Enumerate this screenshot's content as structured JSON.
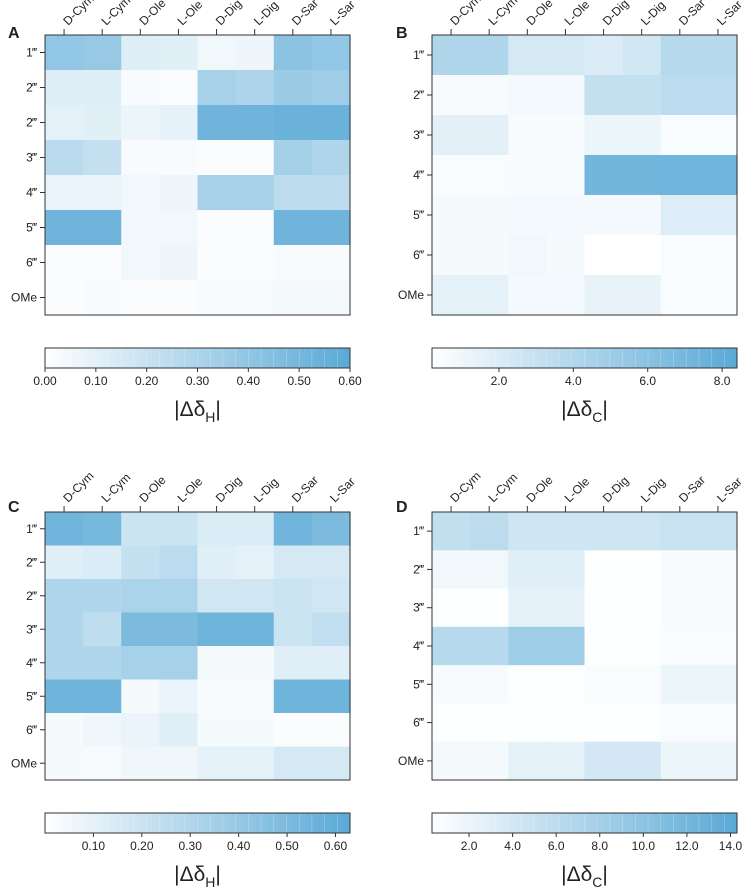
{
  "colors": {
    "low": "#ffffff",
    "high": "#5aa9d6",
    "frame": "#333333"
  },
  "chart_data": [
    {
      "type": "heatmap",
      "panel": "A",
      "columns": [
        "D-Cym",
        "L-Cym",
        "D-Ole",
        "L-Ole",
        "D-Dig",
        "L-Dig",
        "D-Sar",
        "L-Sar"
      ],
      "rows": [
        "1‴",
        "2‴",
        "2‴",
        "3‴",
        "4‴",
        "5‴",
        "6‴",
        "OMe"
      ],
      "values": [
        [
          0.4,
          0.38,
          0.12,
          0.11,
          0.05,
          0.06,
          0.42,
          0.4
        ],
        [
          0.12,
          0.12,
          0.03,
          0.02,
          0.32,
          0.3,
          0.36,
          0.35
        ],
        [
          0.1,
          0.11,
          0.07,
          0.09,
          0.52,
          0.52,
          0.54,
          0.54
        ],
        [
          0.25,
          0.22,
          0.03,
          0.03,
          0.02,
          0.02,
          0.33,
          0.29
        ],
        [
          0.08,
          0.08,
          0.05,
          0.06,
          0.32,
          0.32,
          0.24,
          0.24
        ],
        [
          0.52,
          0.52,
          0.05,
          0.05,
          0.02,
          0.02,
          0.52,
          0.52
        ],
        [
          0.02,
          0.02,
          0.05,
          0.06,
          0.02,
          0.02,
          0.03,
          0.03
        ],
        [
          0.02,
          0.03,
          0.02,
          0.02,
          0.03,
          0.03,
          0.04,
          0.04
        ]
      ],
      "colorbar": {
        "range": [
          0,
          0.6
        ],
        "ticks": [
          "0.00",
          "0.10",
          "0.20",
          "0.30",
          "0.40",
          "0.50",
          "0.60"
        ],
        "tickValues": [
          0,
          0.1,
          0.2,
          0.3,
          0.4,
          0.5,
          0.6
        ],
        "label": "|Δδ",
        "label_sub": "H",
        "label_end": "|"
      }
    },
    {
      "type": "heatmap",
      "panel": "B",
      "columns": [
        "D-Cym",
        "L-Cym",
        "D-Ole",
        "L-Ole",
        "D-Dig",
        "L-Dig",
        "D-Sar",
        "L-Sar"
      ],
      "rows": [
        "1‴",
        "2‴",
        "3‴",
        "4‴",
        "5‴",
        "6‴",
        "OMe"
      ],
      "values": [
        [
          4.2,
          4.2,
          2.3,
          2.3,
          2.0,
          2.5,
          3.8,
          3.8
        ],
        [
          0.6,
          0.6,
          0.8,
          0.8,
          3.2,
          3.2,
          3.6,
          3.6
        ],
        [
          1.6,
          1.6,
          0.6,
          0.6,
          1.2,
          1.2,
          0.5,
          0.5
        ],
        [
          0.5,
          0.5,
          0.6,
          0.6,
          7.2,
          7.2,
          7.3,
          7.3
        ],
        [
          0.7,
          0.7,
          0.8,
          0.8,
          0.8,
          0.8,
          1.9,
          1.9
        ],
        [
          0.7,
          0.7,
          0.9,
          0.7,
          0.2,
          0.2,
          0.5,
          0.5
        ],
        [
          1.5,
          1.5,
          0.8,
          0.8,
          1.4,
          1.4,
          0.5,
          0.5
        ]
      ],
      "colorbar": {
        "range": [
          0.2,
          8.4
        ],
        "ticks": [
          "2.0",
          "4.0",
          "6.0",
          "8.0"
        ],
        "tickValues": [
          2,
          4,
          6,
          8
        ],
        "label": "|Δδ",
        "label_sub": "C",
        "label_end": "|"
      }
    },
    {
      "type": "heatmap",
      "panel": "C",
      "columns": [
        "D-Cym",
        "L-Cym",
        "D-Ole",
        "L-Ole",
        "D-Dig",
        "L-Dig",
        "D-Sar",
        "L-Sar"
      ],
      "rows": [
        "1‴",
        "2‴",
        "2‴",
        "3‴",
        "4‴",
        "5‴",
        "6‴",
        "OMe"
      ],
      "values": [
        [
          0.54,
          0.52,
          0.2,
          0.2,
          0.14,
          0.14,
          0.54,
          0.5
        ],
        [
          0.12,
          0.14,
          0.22,
          0.26,
          0.12,
          0.1,
          0.16,
          0.16
        ],
        [
          0.3,
          0.3,
          0.32,
          0.32,
          0.18,
          0.18,
          0.2,
          0.18
        ],
        [
          0.3,
          0.25,
          0.5,
          0.5,
          0.55,
          0.55,
          0.2,
          0.24
        ],
        [
          0.3,
          0.3,
          0.34,
          0.34,
          0.04,
          0.04,
          0.12,
          0.12
        ],
        [
          0.55,
          0.55,
          0.04,
          0.08,
          0.03,
          0.03,
          0.55,
          0.55
        ],
        [
          0.04,
          0.06,
          0.08,
          0.12,
          0.04,
          0.04,
          0.02,
          0.02
        ],
        [
          0.04,
          0.03,
          0.06,
          0.06,
          0.1,
          0.1,
          0.16,
          0.16
        ]
      ],
      "colorbar": {
        "range": [
          0,
          0.63
        ],
        "ticks": [
          "0.10",
          "0.20",
          "0.30",
          "0.40",
          "0.50",
          "0.60"
        ],
        "tickValues": [
          0.1,
          0.2,
          0.3,
          0.4,
          0.5,
          0.6
        ],
        "label": "|Δδ",
        "label_sub": "H",
        "label_end": "|"
      }
    },
    {
      "type": "heatmap",
      "panel": "D",
      "columns": [
        "D-Cym",
        "L-Cym",
        "D-Ole",
        "L-Ole",
        "D-Dig",
        "L-Dig",
        "D-Sar",
        "L-Sar"
      ],
      "rows": [
        "1‴",
        "2‴",
        "3‴",
        "4‴",
        "5‴",
        "6‴",
        "OMe"
      ],
      "values": [
        [
          5.5,
          6.0,
          4.5,
          4.5,
          4.5,
          4.5,
          5.0,
          5.0
        ],
        [
          1.5,
          1.5,
          3.0,
          3.0,
          0.5,
          0.5,
          1.0,
          1.0
        ],
        [
          0.5,
          0.5,
          2.5,
          2.5,
          0.5,
          0.5,
          1.0,
          1.0
        ],
        [
          6.5,
          6.5,
          8.5,
          8.5,
          0.5,
          0.5,
          0.8,
          0.8
        ],
        [
          1.0,
          1.0,
          0.5,
          0.5,
          0.8,
          0.8,
          2.0,
          2.0
        ],
        [
          0.5,
          0.5,
          0.5,
          0.5,
          0.5,
          0.5,
          0.8,
          0.8
        ],
        [
          1.2,
          1.2,
          2.5,
          2.5,
          4.0,
          4.0,
          2.0,
          2.0
        ]
      ],
      "colorbar": {
        "range": [
          0.3,
          14.3
        ],
        "ticks": [
          "2.0",
          "4.0",
          "6.0",
          "8.0",
          "10.0",
          "12.0",
          "14.0"
        ],
        "tickValues": [
          2,
          4,
          6,
          8,
          10,
          12,
          14
        ],
        "label": "|Δδ",
        "label_sub": "C",
        "label_end": "|"
      }
    }
  ]
}
